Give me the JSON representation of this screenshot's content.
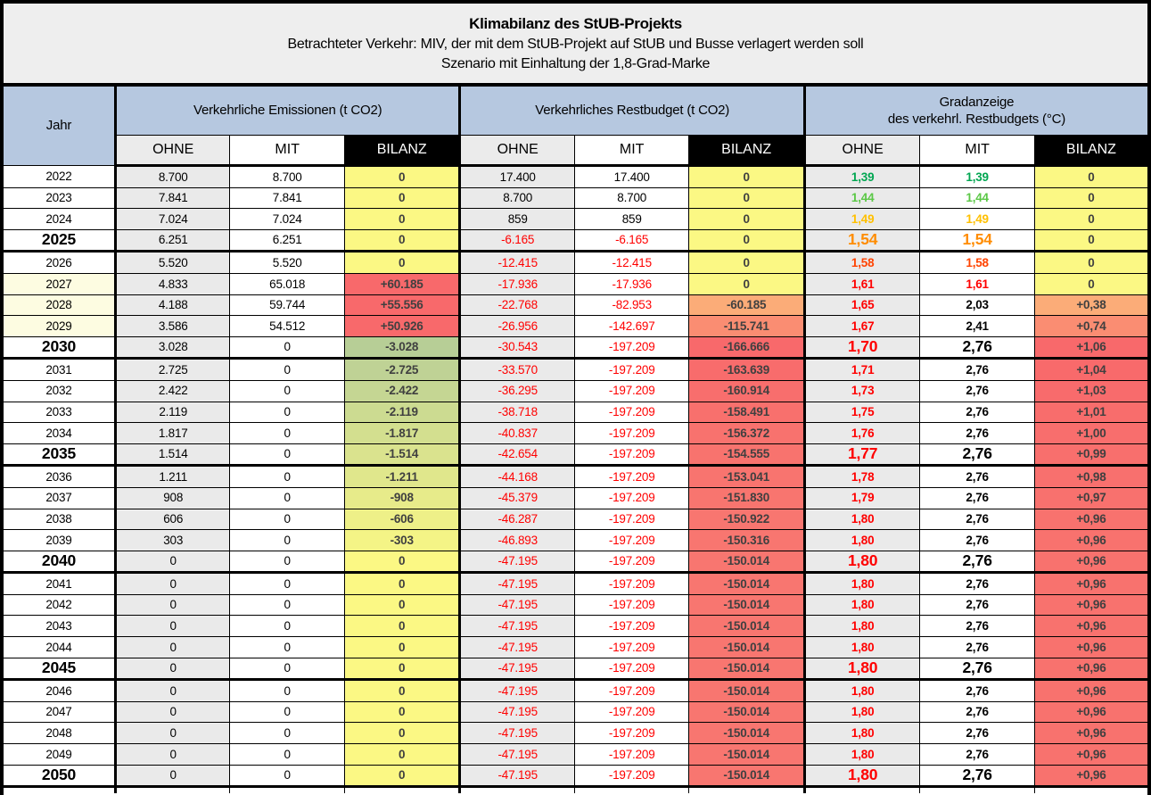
{
  "title": {
    "line1": "Klimabilanz des StUB-Projekts",
    "line2": "Betrachteter Verkehr: MIV, der mit dem StUB-Projekt auf StUB und Busse verlagert werden soll",
    "line3": "Szenario mit Einhaltung der 1,8-Grad-Marke"
  },
  "header": {
    "year_label": "Jahr",
    "groups": [
      {
        "label": "Verkehrliche Emissionen (t CO2)"
      },
      {
        "label": "Verkehrliches Restbudget (t CO2)"
      },
      {
        "label": "Gradanzeige\ndes verkehrl. Restbudgets (°C)"
      }
    ],
    "sub": [
      "OHNE",
      "MIT",
      "BILANZ"
    ]
  },
  "colors": {
    "title_bg": "#EEEEEE",
    "group_header_bg": "#B6C8E0",
    "ohne_bg": "#EAEAEA",
    "bilanz_header_bg": "#000000",
    "bilanz_text": "#404040",
    "negative_text": "#FF0000",
    "scale_yellow": "#FBF884",
    "scale_red": "#F8696B",
    "scale_green": "#B7CE96",
    "year_highlight_bg": "#FDFCE1"
  },
  "rows": [
    {
      "y": "2022",
      "ms": false,
      "hl": false,
      "ge": false,
      "em": [
        "8.700",
        "8.700",
        "0"
      ],
      "embg": "#FBF884",
      "rb": [
        "17.400",
        "17.400",
        "0"
      ],
      "rbbg": "#FBF884",
      "gr": [
        "1,39",
        "1,39",
        "0"
      ],
      "grc": [
        "#00A651",
        "#00A651"
      ],
      "grbg": "#FBF884"
    },
    {
      "y": "2023",
      "ms": false,
      "hl": false,
      "ge": false,
      "em": [
        "7.841",
        "7.841",
        "0"
      ],
      "embg": "#FBF884",
      "rb": [
        "8.700",
        "8.700",
        "0"
      ],
      "rbbg": "#FBF884",
      "gr": [
        "1,44",
        "1,44",
        "0"
      ],
      "grc": [
        "#5BC846",
        "#5BC846"
      ],
      "grbg": "#FBF884"
    },
    {
      "y": "2024",
      "ms": false,
      "hl": false,
      "ge": false,
      "em": [
        "7.024",
        "7.024",
        "0"
      ],
      "embg": "#FBF884",
      "rb": [
        "859",
        "859",
        "0"
      ],
      "rbbg": "#FBF884",
      "gr": [
        "1,49",
        "1,49",
        "0"
      ],
      "grc": [
        "#FFC000",
        "#FFC000"
      ],
      "grbg": "#FBF884"
    },
    {
      "y": "2025",
      "ms": true,
      "hl": false,
      "ge": true,
      "em": [
        "6.251",
        "6.251",
        "0"
      ],
      "embg": "#FBF884",
      "rb": [
        "-6.165",
        "-6.165",
        "0"
      ],
      "rbbg": "#FBF884",
      "gr": [
        "1,54",
        "1,54",
        "0"
      ],
      "grc": [
        "#FF8C00",
        "#FF8C00"
      ],
      "grbg": "#FBF884"
    },
    {
      "y": "2026",
      "ms": false,
      "hl": false,
      "ge": false,
      "em": [
        "5.520",
        "5.520",
        "0"
      ],
      "embg": "#FBF884",
      "rb": [
        "-12.415",
        "-12.415",
        "0"
      ],
      "rbbg": "#FBF884",
      "gr": [
        "1,58",
        "1,58",
        "0"
      ],
      "grc": [
        "#FF4300",
        "#FF4300"
      ],
      "grbg": "#FBF884"
    },
    {
      "y": "2027",
      "ms": false,
      "hl": true,
      "ge": false,
      "em": [
        "4.833",
        "65.018",
        "+60.185"
      ],
      "embg": "#F8696B",
      "rb": [
        "-17.936",
        "-17.936",
        "0"
      ],
      "rbbg": "#FBF884",
      "gr": [
        "1,61",
        "1,61",
        "0"
      ],
      "grc": [
        "#FF0000",
        "#FF0000"
      ],
      "grbg": "#FBF884"
    },
    {
      "y": "2028",
      "ms": false,
      "hl": true,
      "ge": false,
      "em": [
        "4.188",
        "59.744",
        "+55.556"
      ],
      "embg": "#F8696B",
      "rb": [
        "-22.768",
        "-82.953",
        "-60.185"
      ],
      "rbbg": "#FBAC78",
      "gr": [
        "1,65",
        "2,03",
        "+0,38"
      ],
      "grc": [
        "#FF0000",
        "#000000"
      ],
      "grbg": "#FBAC78"
    },
    {
      "y": "2029",
      "ms": false,
      "hl": true,
      "ge": false,
      "em": [
        "3.586",
        "54.512",
        "+50.926"
      ],
      "embg": "#F8696B",
      "rb": [
        "-26.956",
        "-142.697",
        "-115.741"
      ],
      "rbbg": "#FA8D72",
      "gr": [
        "1,67",
        "2,41",
        "+0,74"
      ],
      "grc": [
        "#FF0000",
        "#000000"
      ],
      "grbg": "#FA8D72"
    },
    {
      "y": "2030",
      "ms": true,
      "hl": false,
      "ge": true,
      "em": [
        "3.028",
        "0",
        "-3.028"
      ],
      "embg": "#B7CE96",
      "rb": [
        "-30.543",
        "-197.209",
        "-166.666"
      ],
      "rbbg": "#F8696B",
      "gr": [
        "1,70",
        "2,76",
        "+1,06"
      ],
      "grc": [
        "#FF0000",
        "#000000"
      ],
      "grbg": "#F8696B"
    },
    {
      "y": "2031",
      "ms": false,
      "hl": false,
      "ge": false,
      "em": [
        "2.725",
        "0",
        "-2.725"
      ],
      "embg": "#BFD295",
      "rb": [
        "-33.570",
        "-197.209",
        "-163.639"
      ],
      "rbbg": "#F86C6C",
      "gr": [
        "1,71",
        "2,76",
        "+1,04"
      ],
      "grc": [
        "#FF0000",
        "#000000"
      ],
      "grbg": "#F86A6B"
    },
    {
      "y": "2032",
      "ms": false,
      "hl": false,
      "ge": false,
      "em": [
        "2.422",
        "0",
        "-2.422"
      ],
      "embg": "#C5D693",
      "rb": [
        "-36.295",
        "-197.209",
        "-160.914"
      ],
      "rbbg": "#F86E6D",
      "gr": [
        "1,73",
        "2,76",
        "+1,03"
      ],
      "grc": [
        "#FF0000",
        "#000000"
      ],
      "grbg": "#F86B6C"
    },
    {
      "y": "2033",
      "ms": false,
      "hl": false,
      "ge": false,
      "em": [
        "2.119",
        "0",
        "-2.119"
      ],
      "embg": "#CCDB91",
      "rb": [
        "-38.718",
        "-197.209",
        "-158.491"
      ],
      "rbbg": "#F8706D",
      "gr": [
        "1,75",
        "2,76",
        "+1,01"
      ],
      "grc": [
        "#FF0000",
        "#000000"
      ],
      "grbg": "#F86D6C"
    },
    {
      "y": "2034",
      "ms": false,
      "hl": false,
      "ge": false,
      "em": [
        "1.817",
        "0",
        "-1.817"
      ],
      "embg": "#D3DF8F",
      "rb": [
        "-40.837",
        "-197.209",
        "-156.372"
      ],
      "rbbg": "#F8726E",
      "gr": [
        "1,76",
        "2,76",
        "+1,00"
      ],
      "grc": [
        "#FF0000",
        "#000000"
      ],
      "grbg": "#F86E6D"
    },
    {
      "y": "2035",
      "ms": true,
      "hl": false,
      "ge": true,
      "em": [
        "1.514",
        "0",
        "-1.514"
      ],
      "embg": "#DAE38E",
      "rb": [
        "-42.654",
        "-197.209",
        "-154.555"
      ],
      "rbbg": "#F8736E",
      "gr": [
        "1,77",
        "2,76",
        "+0,99"
      ],
      "grc": [
        "#FF0000",
        "#000000"
      ],
      "grbg": "#F86F6D"
    },
    {
      "y": "2036",
      "ms": false,
      "hl": false,
      "ge": false,
      "em": [
        "1.211",
        "0",
        "-1.211"
      ],
      "embg": "#E0E78C",
      "rb": [
        "-44.168",
        "-197.209",
        "-153.041"
      ],
      "rbbg": "#F8746F",
      "gr": [
        "1,78",
        "2,76",
        "+0,98"
      ],
      "grc": [
        "#FF0000",
        "#000000"
      ],
      "grbg": "#F8706E"
    },
    {
      "y": "2037",
      "ms": false,
      "hl": false,
      "ge": false,
      "em": [
        "908",
        "0",
        "-908"
      ],
      "embg": "#E7EB8A",
      "rb": [
        "-45.379",
        "-197.209",
        "-151.830"
      ],
      "rbbg": "#F8756F",
      "gr": [
        "1,79",
        "2,76",
        "+0,97"
      ],
      "grc": [
        "#FF0000",
        "#000000"
      ],
      "grbg": "#F8716E"
    },
    {
      "y": "2038",
      "ms": false,
      "hl": false,
      "ge": false,
      "em": [
        "606",
        "0",
        "-606"
      ],
      "embg": "#EEF088",
      "rb": [
        "-46.287",
        "-197.209",
        "-150.922"
      ],
      "rbbg": "#F87670",
      "gr": [
        "1,80",
        "2,76",
        "+0,96"
      ],
      "grc": [
        "#FF0000",
        "#000000"
      ],
      "grbg": "#F8726E"
    },
    {
      "y": "2039",
      "ms": false,
      "hl": false,
      "ge": false,
      "em": [
        "303",
        "0",
        "-303"
      ],
      "embg": "#F4F486",
      "rb": [
        "-46.893",
        "-197.209",
        "-150.316"
      ],
      "rbbg": "#F87670",
      "gr": [
        "1,80",
        "2,76",
        "+0,96"
      ],
      "grc": [
        "#FF0000",
        "#000000"
      ],
      "grbg": "#F8726E"
    },
    {
      "y": "2040",
      "ms": true,
      "hl": false,
      "ge": true,
      "em": [
        "0",
        "0",
        "0"
      ],
      "embg": "#FBF884",
      "rb": [
        "-47.195",
        "-197.209",
        "-150.014"
      ],
      "rbbg": "#F87670",
      "gr": [
        "1,80",
        "2,76",
        "+0,96"
      ],
      "grc": [
        "#FF0000",
        "#000000"
      ],
      "grbg": "#F8726E"
    },
    {
      "y": "2041",
      "ms": false,
      "hl": false,
      "ge": false,
      "em": [
        "0",
        "0",
        "0"
      ],
      "embg": "#FBF884",
      "rb": [
        "-47.195",
        "-197.209",
        "-150.014"
      ],
      "rbbg": "#F87670",
      "gr": [
        "1,80",
        "2,76",
        "+0,96"
      ],
      "grc": [
        "#FF0000",
        "#000000"
      ],
      "grbg": "#F8726E"
    },
    {
      "y": "2042",
      "ms": false,
      "hl": false,
      "ge": false,
      "em": [
        "0",
        "0",
        "0"
      ],
      "embg": "#FBF884",
      "rb": [
        "-47.195",
        "-197.209",
        "-150.014"
      ],
      "rbbg": "#F87670",
      "gr": [
        "1,80",
        "2,76",
        "+0,96"
      ],
      "grc": [
        "#FF0000",
        "#000000"
      ],
      "grbg": "#F8726E"
    },
    {
      "y": "2043",
      "ms": false,
      "hl": false,
      "ge": false,
      "em": [
        "0",
        "0",
        "0"
      ],
      "embg": "#FBF884",
      "rb": [
        "-47.195",
        "-197.209",
        "-150.014"
      ],
      "rbbg": "#F87670",
      "gr": [
        "1,80",
        "2,76",
        "+0,96"
      ],
      "grc": [
        "#FF0000",
        "#000000"
      ],
      "grbg": "#F8726E"
    },
    {
      "y": "2044",
      "ms": false,
      "hl": false,
      "ge": false,
      "em": [
        "0",
        "0",
        "0"
      ],
      "embg": "#FBF884",
      "rb": [
        "-47.195",
        "-197.209",
        "-150.014"
      ],
      "rbbg": "#F87670",
      "gr": [
        "1,80",
        "2,76",
        "+0,96"
      ],
      "grc": [
        "#FF0000",
        "#000000"
      ],
      "grbg": "#F8726E"
    },
    {
      "y": "2045",
      "ms": true,
      "hl": false,
      "ge": true,
      "em": [
        "0",
        "0",
        "0"
      ],
      "embg": "#FBF884",
      "rb": [
        "-47.195",
        "-197.209",
        "-150.014"
      ],
      "rbbg": "#F87670",
      "gr": [
        "1,80",
        "2,76",
        "+0,96"
      ],
      "grc": [
        "#FF0000",
        "#000000"
      ],
      "grbg": "#F8726E"
    },
    {
      "y": "2046",
      "ms": false,
      "hl": false,
      "ge": false,
      "em": [
        "0",
        "0",
        "0"
      ],
      "embg": "#FBF884",
      "rb": [
        "-47.195",
        "-197.209",
        "-150.014"
      ],
      "rbbg": "#F87670",
      "gr": [
        "1,80",
        "2,76",
        "+0,96"
      ],
      "grc": [
        "#FF0000",
        "#000000"
      ],
      "grbg": "#F8726E"
    },
    {
      "y": "2047",
      "ms": false,
      "hl": false,
      "ge": false,
      "em": [
        "0",
        "0",
        "0"
      ],
      "embg": "#FBF884",
      "rb": [
        "-47.195",
        "-197.209",
        "-150.014"
      ],
      "rbbg": "#F87670",
      "gr": [
        "1,80",
        "2,76",
        "+0,96"
      ],
      "grc": [
        "#FF0000",
        "#000000"
      ],
      "grbg": "#F8726E"
    },
    {
      "y": "2048",
      "ms": false,
      "hl": false,
      "ge": false,
      "em": [
        "0",
        "0",
        "0"
      ],
      "embg": "#FBF884",
      "rb": [
        "-47.195",
        "-197.209",
        "-150.014"
      ],
      "rbbg": "#F87670",
      "gr": [
        "1,80",
        "2,76",
        "+0,96"
      ],
      "grc": [
        "#FF0000",
        "#000000"
      ],
      "grbg": "#F8726E"
    },
    {
      "y": "2049",
      "ms": false,
      "hl": false,
      "ge": false,
      "em": [
        "0",
        "0",
        "0"
      ],
      "embg": "#FBF884",
      "rb": [
        "-47.195",
        "-197.209",
        "-150.014"
      ],
      "rbbg": "#F87670",
      "gr": [
        "1,80",
        "2,76",
        "+0,96"
      ],
      "grc": [
        "#FF0000",
        "#000000"
      ],
      "grbg": "#F8726E"
    },
    {
      "y": "2050",
      "ms": true,
      "hl": false,
      "ge": true,
      "em": [
        "0",
        "0",
        "0"
      ],
      "embg": "#FBF884",
      "rb": [
        "-47.195",
        "-197.209",
        "-150.014"
      ],
      "rbbg": "#F87670",
      "gr": [
        "1,80",
        "2,76",
        "+0,96"
      ],
      "grc": [
        "#FF0000",
        "#000000"
      ],
      "grbg": "#F8726E"
    }
  ],
  "chart_data": {
    "type": "table",
    "title": "Klimabilanz des StUB-Projekts",
    "subtitle": "Betrachteter Verkehr: MIV, der mit dem StUB-Projekt auf StUB und Busse verlagert werden soll — Szenario mit Einhaltung der 1,8-Grad-Marke",
    "column_groups": [
      "Verkehrliche Emissionen (t CO2)",
      "Verkehrliches Restbudget (t CO2)",
      "Gradanzeige des verkehrl. Restbudgets (°C)"
    ],
    "columns": [
      "Jahr",
      "Emissionen OHNE",
      "Emissionen MIT",
      "Emissionen BILANZ",
      "Restbudget OHNE",
      "Restbudget MIT",
      "Restbudget BILANZ",
      "Grad OHNE",
      "Grad MIT",
      "Grad BILANZ"
    ],
    "rows": [
      [
        2022,
        8700,
        8700,
        0,
        17400,
        17400,
        0,
        1.39,
        1.39,
        0
      ],
      [
        2023,
        7841,
        7841,
        0,
        8700,
        8700,
        0,
        1.44,
        1.44,
        0
      ],
      [
        2024,
        7024,
        7024,
        0,
        859,
        859,
        0,
        1.49,
        1.49,
        0
      ],
      [
        2025,
        6251,
        6251,
        0,
        -6165,
        -6165,
        0,
        1.54,
        1.54,
        0
      ],
      [
        2026,
        5520,
        5520,
        0,
        -12415,
        -12415,
        0,
        1.58,
        1.58,
        0
      ],
      [
        2027,
        4833,
        65018,
        60185,
        -17936,
        -17936,
        0,
        1.61,
        1.61,
        0
      ],
      [
        2028,
        4188,
        59744,
        55556,
        -22768,
        -82953,
        -60185,
        1.65,
        2.03,
        0.38
      ],
      [
        2029,
        3586,
        54512,
        50926,
        -26956,
        -142697,
        -115741,
        1.67,
        2.41,
        0.74
      ],
      [
        2030,
        3028,
        0,
        -3028,
        -30543,
        -197209,
        -166666,
        1.7,
        2.76,
        1.06
      ],
      [
        2031,
        2725,
        0,
        -2725,
        -33570,
        -197209,
        -163639,
        1.71,
        2.76,
        1.04
      ],
      [
        2032,
        2422,
        0,
        -2422,
        -36295,
        -197209,
        -160914,
        1.73,
        2.76,
        1.03
      ],
      [
        2033,
        2119,
        0,
        -2119,
        -38718,
        -197209,
        -158491,
        1.75,
        2.76,
        1.01
      ],
      [
        2034,
        1817,
        0,
        -1817,
        -40837,
        -197209,
        -156372,
        1.76,
        2.76,
        1.0
      ],
      [
        2035,
        1514,
        0,
        -1514,
        -42654,
        -197209,
        -154555,
        1.77,
        2.76,
        0.99
      ],
      [
        2036,
        1211,
        0,
        -1211,
        -44168,
        -197209,
        -153041,
        1.78,
        2.76,
        0.98
      ],
      [
        2037,
        908,
        0,
        -908,
        -45379,
        -197209,
        -151830,
        1.79,
        2.76,
        0.97
      ],
      [
        2038,
        606,
        0,
        -606,
        -46287,
        -197209,
        -150922,
        1.8,
        2.76,
        0.96
      ],
      [
        2039,
        303,
        0,
        -303,
        -46893,
        -197209,
        -150316,
        1.8,
        2.76,
        0.96
      ],
      [
        2040,
        0,
        0,
        0,
        -47195,
        -197209,
        -150014,
        1.8,
        2.76,
        0.96
      ],
      [
        2041,
        0,
        0,
        0,
        -47195,
        -197209,
        -150014,
        1.8,
        2.76,
        0.96
      ],
      [
        2042,
        0,
        0,
        0,
        -47195,
        -197209,
        -150014,
        1.8,
        2.76,
        0.96
      ],
      [
        2043,
        0,
        0,
        0,
        -47195,
        -197209,
        -150014,
        1.8,
        2.76,
        0.96
      ],
      [
        2044,
        0,
        0,
        0,
        -47195,
        -197209,
        -150014,
        1.8,
        2.76,
        0.96
      ],
      [
        2045,
        0,
        0,
        0,
        -47195,
        -197209,
        -150014,
        1.8,
        2.76,
        0.96
      ],
      [
        2046,
        0,
        0,
        0,
        -47195,
        -197209,
        -150014,
        1.8,
        2.76,
        0.96
      ],
      [
        2047,
        0,
        0,
        0,
        -47195,
        -197209,
        -150014,
        1.8,
        2.76,
        0.96
      ],
      [
        2048,
        0,
        0,
        0,
        -47195,
        -197209,
        -150014,
        1.8,
        2.76,
        0.96
      ],
      [
        2049,
        0,
        0,
        0,
        -47195,
        -197209,
        -150014,
        1.8,
        2.76,
        0.96
      ],
      [
        2050,
        0,
        0,
        0,
        -47195,
        -197209,
        -150014,
        1.8,
        2.76,
        0.96
      ]
    ]
  }
}
